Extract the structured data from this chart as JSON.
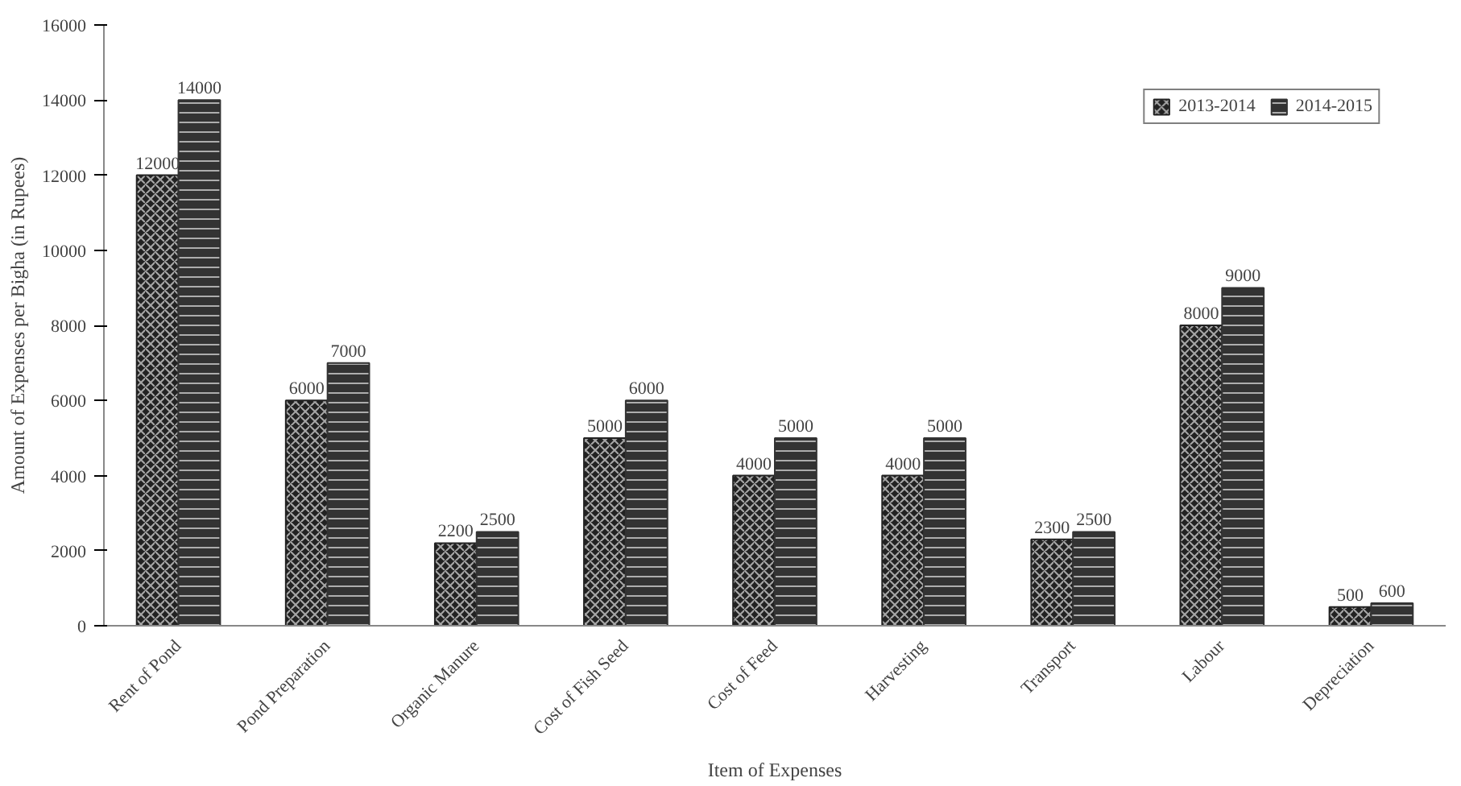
{
  "chart_data": {
    "type": "bar",
    "xlabel": "Item of Expenses",
    "ylabel": "Amount of Expenses per Bigha (in Rupees)",
    "categories": [
      "Rent of Pond",
      "Pond Preparation",
      "Organic Manure",
      "Cost of Fish Seed",
      "Cost of Feed",
      "Harvesting",
      "Transport",
      "Labour",
      "Depreciation"
    ],
    "series": [
      {
        "name": "2013-2014",
        "color": "#222222",
        "values": [
          12000,
          6000,
          2200,
          5000,
          4000,
          4000,
          2300,
          8000,
          500
        ]
      },
      {
        "name": "2014-2015",
        "color": "#333333",
        "values": [
          14000,
          7000,
          2500,
          6000,
          5000,
          5000,
          2500,
          9000,
          600
        ]
      }
    ],
    "ylim": [
      0,
      16000
    ],
    "yticks": [
      0,
      2000,
      4000,
      6000,
      8000,
      10000,
      12000,
      14000,
      16000
    ],
    "data_labels": true,
    "legend": "top right",
    "grid": false
  }
}
